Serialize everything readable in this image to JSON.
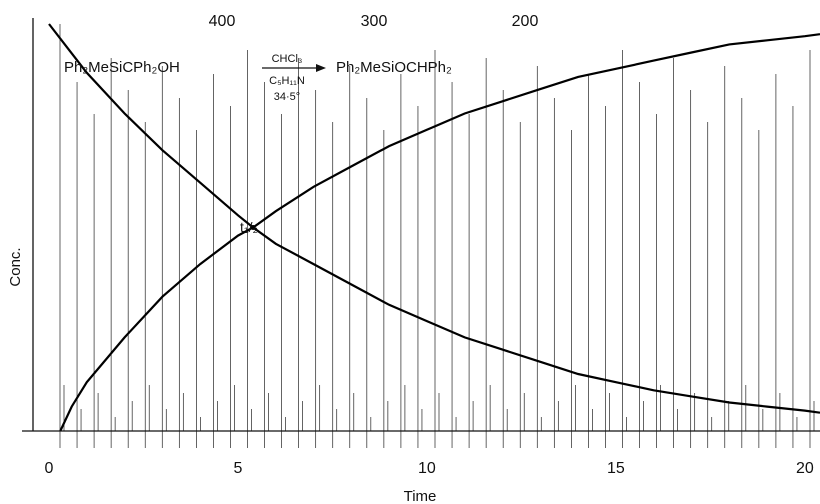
{
  "chart_data": {
    "type": "line",
    "title": "",
    "xlabel": "Time",
    "ylabel": "Conc.",
    "xlim": [
      0,
      20.4
    ],
    "ylim": [
      0,
      1
    ],
    "x_ticks": [
      "0",
      "5",
      "10",
      "15",
      "20"
    ],
    "top_ticks": [
      "400",
      "300",
      "200"
    ],
    "reaction": {
      "reactant": "Ph₂MeSiCPh₂OH",
      "product": "Ph₂MeSiOCHPh₂",
      "reagent_top": "CHCl₃",
      "reagent_bottom": "C₅H₁₁N",
      "temperature": "34·5°"
    },
    "annotation": "t₁/₂",
    "half_life_x": 5.4,
    "series": [
      {
        "x": [
          0,
          0.5,
          1,
          2,
          3,
          4,
          5,
          5.4,
          6,
          7,
          8,
          9,
          10,
          11,
          12,
          13,
          14,
          15,
          16,
          17,
          18,
          19,
          20,
          20.4
        ],
        "values": [
          1.0,
          0.94,
          0.88,
          0.78,
          0.69,
          0.61,
          0.53,
          0.5,
          0.46,
          0.41,
          0.36,
          0.31,
          0.27,
          0.23,
          0.2,
          0.17,
          0.14,
          0.12,
          0.1,
          0.085,
          0.07,
          0.06,
          0.05,
          0.045
        ]
      },
      {
        "x": [
          0.3,
          0.6,
          1,
          2,
          3,
          4,
          5,
          5.4,
          6,
          7,
          8,
          9,
          10,
          11,
          12,
          13,
          14,
          15,
          16,
          17,
          18,
          19,
          20,
          20.4
        ],
        "values": [
          0.0,
          0.06,
          0.12,
          0.23,
          0.33,
          0.41,
          0.48,
          0.5,
          0.54,
          0.6,
          0.65,
          0.7,
          0.74,
          0.78,
          0.81,
          0.84,
          0.87,
          0.89,
          0.91,
          0.93,
          0.95,
          0.96,
          0.97,
          0.975
        ]
      }
    ],
    "scan_lines": 45
  }
}
